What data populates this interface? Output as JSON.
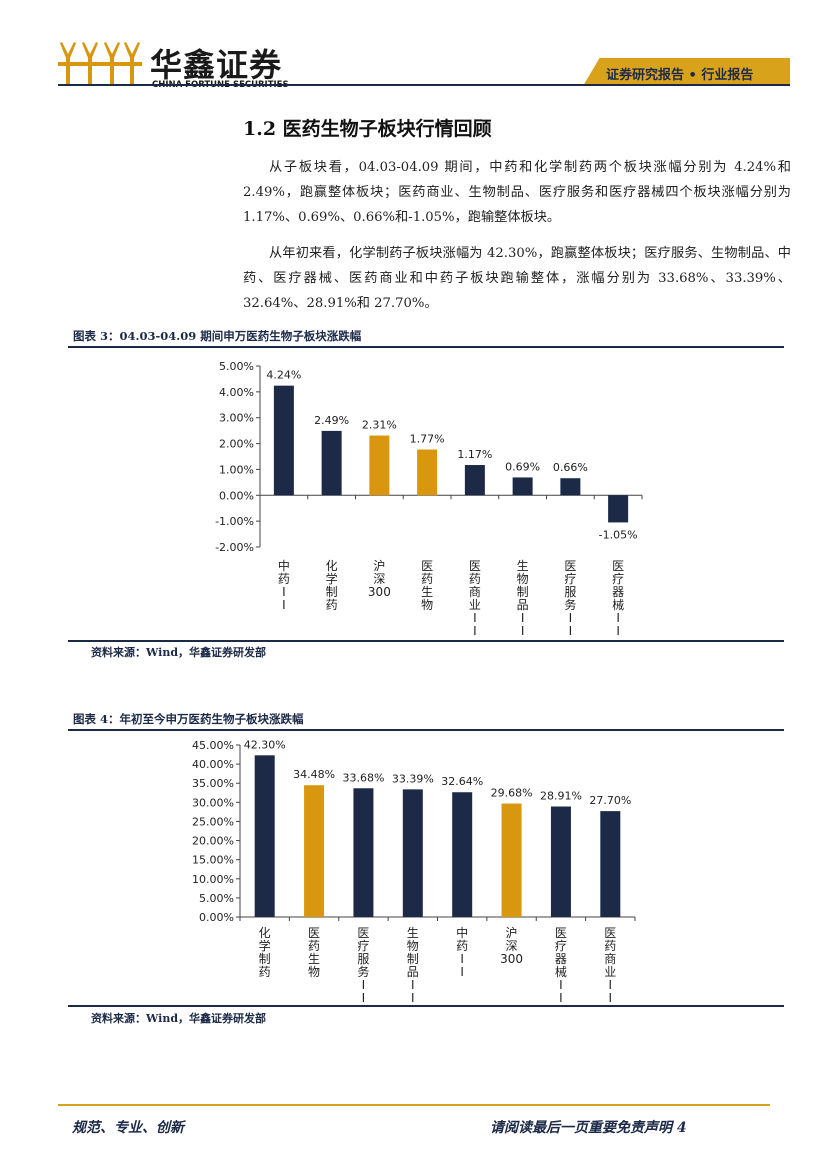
{
  "header": {
    "company_cn": "华鑫证券",
    "company_en": "CHINA FORTUNE SECURITIES",
    "report_tag": "证券研究报告 • 行业报告"
  },
  "section": {
    "title": "1.2 医药生物子板块行情回顾",
    "paragraphs": [
      "从子板块看，04.03-04.09 期间，中药和化学制药两个板块涨幅分别为 4.24%和 2.49%，跑赢整体板块；医药商业、生物制品、医疗服务和医疗器械四个板块涨幅分别为 1.17%、0.69%、0.66%和-1.05%，跑输整体板块。",
      "从年初来看，化学制药子板块涨幅为 42.30%，跑赢整体板块；医疗服务、生物制品、中药、医疗器械、医药商业和中药子板块跑输整体，涨幅分别为 33.68%、33.39%、32.64%、28.91%和 27.70%。"
    ]
  },
  "figures": {
    "fig3": {
      "title": "图表 3：04.03-04.09 期间申万医药生物子板块涨跌幅",
      "source": "资料来源：Wind，华鑫证券研发部"
    },
    "fig4": {
      "title": "图表 4：年初至今申万医药生物子板块涨跌幅",
      "source": "资料来源：Wind，华鑫证券研发部"
    }
  },
  "colors": {
    "navy": "#1c2a48",
    "gold": "#d9960f"
  },
  "chart_data": [
    {
      "type": "bar",
      "title": "",
      "categories": [
        "中药II",
        "化学制药",
        "沪深300",
        "医药生物",
        "医药商业II",
        "生物制品II",
        "医疗服务II",
        "医疗器械II"
      ],
      "values": [
        4.24,
        2.49,
        2.31,
        1.77,
        1.17,
        0.69,
        0.66,
        -1.05
      ],
      "value_labels": [
        "4.24%",
        "2.49%",
        "2.31%",
        "1.77%",
        "1.17%",
        "0.69%",
        "0.66%",
        "-1.05%"
      ],
      "highlight": [
        "navy",
        "navy",
        "gold",
        "gold",
        "navy",
        "navy",
        "navy",
        "navy"
      ],
      "ylim": [
        -2,
        5
      ],
      "yticks": [
        5,
        4,
        3,
        2,
        1,
        0,
        -1,
        -2
      ],
      "ytick_labels": [
        "5.00%",
        "4.00%",
        "3.00%",
        "2.00%",
        "1.00%",
        "0.00%",
        "-1.00%",
        "-2.00%"
      ],
      "grid": false,
      "legend": "none"
    },
    {
      "type": "bar",
      "title": "",
      "categories": [
        "化学制药",
        "医药生物",
        "医疗服务II",
        "生物制品II",
        "中药II",
        "沪深300",
        "医疗器械II",
        "医药商业II"
      ],
      "values": [
        42.3,
        34.48,
        33.68,
        33.39,
        32.64,
        29.68,
        28.91,
        27.7
      ],
      "value_labels": [
        "42.30%",
        "34.48%",
        "33.68%",
        "33.39%",
        "32.64%",
        "29.68%",
        "28.91%",
        "27.70%"
      ],
      "highlight": [
        "navy",
        "gold",
        "navy",
        "navy",
        "navy",
        "gold",
        "navy",
        "navy"
      ],
      "ylim": [
        0,
        45
      ],
      "yticks": [
        45,
        40,
        35,
        30,
        25,
        20,
        15,
        10,
        5,
        0
      ],
      "ytick_labels": [
        "45.00%",
        "40.00%",
        "35.00%",
        "30.00%",
        "25.00%",
        "20.00%",
        "15.00%",
        "10.00%",
        "5.00%",
        "0.00%"
      ],
      "grid": false,
      "legend": "none"
    }
  ],
  "footer": {
    "left": "规范、专业、创新",
    "right": "请阅读最后一页重要免责声明 4"
  }
}
